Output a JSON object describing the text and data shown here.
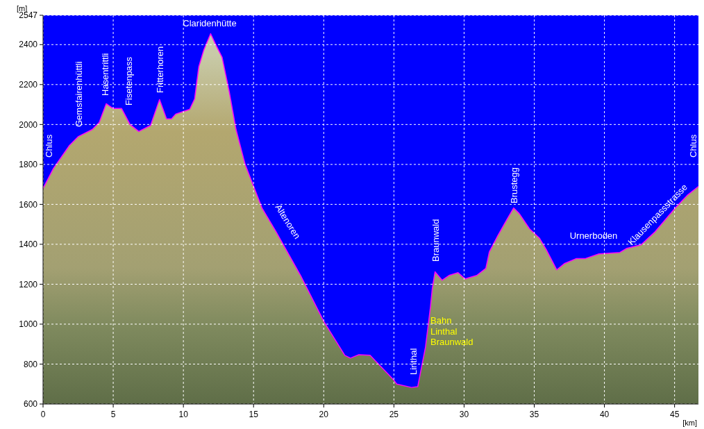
{
  "chart_data": {
    "type": "area",
    "xlabel": "[km]",
    "ylabel": "[m]",
    "xlim": [
      0,
      46.7
    ],
    "xticks": [
      0,
      5,
      10,
      15,
      20,
      25,
      30,
      35,
      40,
      45
    ],
    "ylim": [
      600,
      2547
    ],
    "yticks": [
      600,
      800,
      1000,
      1200,
      1400,
      1600,
      1800,
      2000,
      2200,
      2400,
      2547
    ],
    "grid": true,
    "series": [
      {
        "color": "#ff00ff",
        "x": [
          0,
          0.74,
          1.88,
          2.52,
          3.51,
          4.0,
          4.5,
          5.0,
          5.6,
          6.2,
          6.82,
          7.66,
          8.3,
          8.8,
          9.15,
          9.45,
          10.45,
          10.8,
          11.1,
          11.45,
          11.94,
          12.27,
          12.76,
          13.27,
          13.75,
          14.4,
          15.6,
          16.57,
          18.35,
          20.0,
          21.5,
          21.9,
          22.5,
          23.3,
          24.97,
          25.2,
          26.25,
          26.7,
          27.25,
          27.6,
          27.74,
          27.93,
          28.44,
          28.93,
          29.57,
          30.07,
          30.9,
          31.55,
          31.8,
          32.4,
          33.04,
          33.53,
          33.93,
          34.67,
          35.36,
          35.86,
          36.6,
          37.14,
          37.98,
          38.62,
          39.61,
          41.1,
          41.6,
          42.6,
          43.57,
          45.05,
          45.9,
          46.7
        ],
        "values": [
          1680,
          1780,
          1895,
          1940,
          1975,
          2010,
          2104,
          2080,
          2080,
          2000,
          1965,
          1995,
          2125,
          2028,
          2028,
          2052,
          2076,
          2128,
          2290,
          2372,
          2455,
          2405,
          2336,
          2163,
          1975,
          1800,
          1582,
          1467,
          1244,
          1014,
          844,
          830,
          847,
          844,
          722,
          700,
          683,
          687,
          885,
          1084,
          1181,
          1262,
          1220,
          1244,
          1258,
          1227,
          1244,
          1279,
          1362,
          1443,
          1523,
          1582,
          1554,
          1477,
          1432,
          1373,
          1272,
          1303,
          1328,
          1328,
          1352,
          1359,
          1380,
          1397,
          1460,
          1582,
          1645,
          1690
        ]
      }
    ],
    "annotations": [
      "Chlus",
      "Gemsfairenhüttli",
      "Hasentrittli",
      "Fisetenpass",
      "Fritterhoren",
      "Claridenhütte",
      "Altenoren",
      "Linthal",
      "Braunwald",
      "Bahn\nLinthal\nBraunwald",
      "Brustegg",
      "Urnerboden",
      "Klausenpassstrasse",
      "Chlus"
    ]
  }
}
